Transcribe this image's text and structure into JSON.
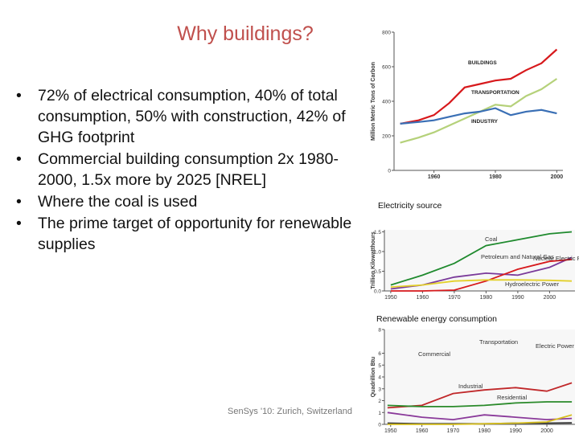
{
  "title": "Why buildings?",
  "bullets": [
    "72% of electrical consumption, 40% of total consumption, 50% with construction, 42% of GHG footprint",
    "Commercial building consumption 2x 1980-2000, 1.5x more by 2025 [NREL]",
    "Where the coal is used",
    "The prime target of opportunity for renewable supplies"
  ],
  "footer": "SenSys '10: Zurich, Switzerland",
  "chart_data": [
    {
      "type": "line",
      "y_label": "Million Metric Tons of Carbon",
      "x": [
        1949,
        1955,
        1960,
        1965,
        1970,
        1975,
        1980,
        1985,
        1990,
        1995,
        2000
      ],
      "xlim": [
        1947,
        2002
      ],
      "ylim": [
        0,
        800
      ],
      "xticks": [
        1960,
        1980,
        2000
      ],
      "yticks": [
        0,
        200,
        400,
        600,
        800
      ],
      "series": [
        {
          "name": "BUILDINGS",
          "color": "#d7191c",
          "values": [
            270,
            290,
            320,
            390,
            480,
            500,
            520,
            530,
            580,
            620,
            700
          ]
        },
        {
          "name": "TRANSPORTATION",
          "color": "#b5d17a",
          "values": [
            160,
            190,
            220,
            260,
            300,
            340,
            380,
            370,
            430,
            470,
            530
          ]
        },
        {
          "name": "INDUSTRY",
          "color": "#3a6fb5",
          "values": [
            270,
            280,
            290,
            310,
            330,
            340,
            360,
            320,
            340,
            350,
            330
          ]
        }
      ]
    },
    {
      "type": "line",
      "caption": "Electricity source",
      "y_label": "Trillion Kilowatthours",
      "x": [
        1950,
        1960,
        1970,
        1980,
        1990,
        2000,
        2007
      ],
      "xlim": [
        1948,
        2008
      ],
      "ylim": [
        0,
        1.55
      ],
      "xticks": [
        1950,
        1960,
        1970,
        1980,
        1990,
        2000
      ],
      "yticks": [
        {
          "value": 0,
          "label": "0.0"
        },
        0.5,
        {
          "value": 1,
          "label": "1.0"
        },
        1.5
      ],
      "series": [
        {
          "name": "Coal",
          "color": "#1f8a2e",
          "values": [
            0.15,
            0.4,
            0.7,
            1.15,
            1.3,
            1.45,
            1.5
          ]
        },
        {
          "name": "Petroleum and Natural Gas",
          "color": "#7a3a9a",
          "values": [
            0.05,
            0.15,
            0.35,
            0.45,
            0.4,
            0.6,
            0.85
          ]
        },
        {
          "name": "Nuclear Electric Power",
          "color": "#d7191c",
          "values": [
            0,
            0,
            0.02,
            0.25,
            0.55,
            0.75,
            0.8
          ]
        },
        {
          "name": "Hydroelectric Power",
          "color": "#e3d02a",
          "values": [
            0.1,
            0.15,
            0.25,
            0.28,
            0.28,
            0.27,
            0.25
          ]
        }
      ]
    },
    {
      "type": "line",
      "caption": "Renewable energy consumption",
      "y_label": "Quadrillion Btu",
      "x": [
        1949,
        1960,
        1970,
        1980,
        1990,
        2000,
        2008
      ],
      "xlim": [
        1948,
        2009
      ],
      "ylim": [
        0,
        8
      ],
      "xticks": [
        1950,
        1960,
        1970,
        1980,
        1990,
        2000
      ],
      "yticks": [
        0,
        1,
        2,
        3,
        4,
        5,
        6,
        8
      ],
      "series": [
        {
          "name": "Electric Power",
          "color": "#c0282a",
          "values": [
            1.4,
            1.6,
            2.6,
            2.9,
            3.1,
            2.8,
            3.5
          ]
        },
        {
          "name": "Industrial",
          "color": "#2a8a2a",
          "values": [
            1.6,
            1.5,
            1.5,
            1.6,
            1.8,
            1.9,
            1.9
          ]
        },
        {
          "name": "Residential",
          "color": "#8a3a9a",
          "values": [
            1.0,
            0.6,
            0.4,
            0.8,
            0.6,
            0.4,
            0.5
          ]
        },
        {
          "name": "Commercial",
          "color": "#333333",
          "values": [
            0.1,
            0.05,
            0.05,
            0.05,
            0.1,
            0.1,
            0.12
          ]
        },
        {
          "name": "Transportation",
          "color": "#d8c020",
          "values": [
            0,
            0,
            0,
            0.05,
            0.1,
            0.2,
            0.8
          ]
        }
      ]
    }
  ]
}
